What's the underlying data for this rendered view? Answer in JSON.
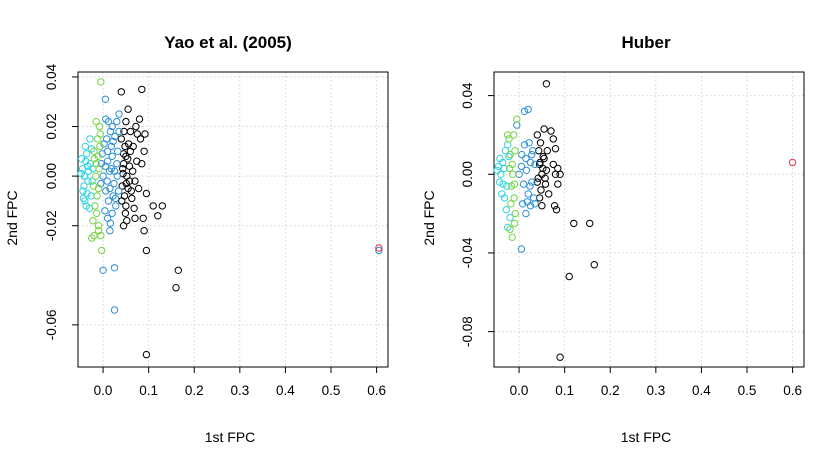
{
  "chart_data": [
    {
      "type": "scatter",
      "title": "Yao et al. (2005)",
      "xlabel": "1st FPC",
      "ylabel": "2nd FPC",
      "xlim": [
        -0.055,
        0.625
      ],
      "ylim": [
        -0.077,
        0.042
      ],
      "xticks": [
        0.0,
        0.1,
        0.2,
        0.3,
        0.4,
        0.5,
        0.6
      ],
      "xtick_labels": [
        "0.0",
        "0.1",
        "0.2",
        "0.3",
        "0.4",
        "0.5",
        "0.6"
      ],
      "yticks": [
        0.04,
        0.02,
        0.0,
        -0.02,
        -0.06
      ],
      "ytick_labels": [
        "0.04",
        "0.02",
        "0.00",
        "-0.02",
        "-0.06"
      ],
      "grid": true,
      "marker": "open-circle",
      "series": [
        {
          "color": "#000000",
          "points": [
            [
              0.05,
              0.008
            ],
            [
              0.045,
              0.005
            ],
            [
              0.048,
              0.012
            ],
            [
              0.052,
              0.0
            ],
            [
              0.055,
              -0.005
            ],
            [
              0.047,
              -0.008
            ],
            [
              0.043,
              0.003
            ],
            [
              0.06,
              0.01
            ],
            [
              0.058,
              -0.002
            ],
            [
              0.05,
              -0.012
            ],
            [
              0.04,
              0.015
            ],
            [
              0.042,
              -0.004
            ],
            [
              0.065,
              0.002
            ],
            [
              0.063,
              -0.009
            ],
            [
              0.046,
              0.018
            ],
            [
              0.054,
              0.007
            ],
            [
              0.049,
              -0.015
            ],
            [
              0.044,
              0.001
            ],
            [
              0.056,
              0.013
            ],
            [
              0.041,
              -0.01
            ],
            [
              0.075,
              0.017
            ],
            [
              0.08,
              0.023
            ],
            [
              0.078,
              -0.005
            ],
            [
              0.085,
              0.005
            ],
            [
              0.09,
              0.01
            ],
            [
              0.07,
              -0.017
            ],
            [
              0.072,
              0.02
            ],
            [
              0.068,
              -0.013
            ],
            [
              0.095,
              -0.007
            ],
            [
              0.088,
              -0.017
            ],
            [
              0.082,
              0.015
            ],
            [
              0.04,
              0.034
            ],
            [
              0.055,
              0.027
            ],
            [
              0.06,
              0.018
            ],
            [
              0.05,
              0.022
            ],
            [
              0.045,
              -0.02
            ],
            [
              0.052,
              -0.018
            ],
            [
              0.085,
              0.035
            ],
            [
              0.092,
              0.017
            ],
            [
              0.11,
              -0.012
            ],
            [
              0.12,
              -0.016
            ],
            [
              0.09,
              -0.022
            ],
            [
              0.095,
              -0.03
            ],
            [
              0.13,
              -0.012
            ],
            [
              0.165,
              -0.038
            ],
            [
              0.16,
              -0.045
            ],
            [
              0.095,
              -0.072
            ],
            [
              0.058,
              0.004
            ],
            [
              0.062,
              -0.006
            ],
            [
              0.045,
              0.009
            ],
            [
              0.066,
              0.012
            ],
            [
              0.07,
              -0.002
            ],
            [
              0.051,
              -0.003
            ],
            [
              0.074,
              0.006
            ]
          ]
        },
        {
          "color": "#2c8fd6",
          "points": [
            [
              0.0,
              0.0
            ],
            [
              0.005,
              0.004
            ],
            [
              -0.005,
              -0.003
            ],
            [
              0.01,
              0.006
            ],
            [
              0.015,
              -0.005
            ],
            [
              0.02,
              0.008
            ],
            [
              0.025,
              0.002
            ],
            [
              0.012,
              -0.01
            ],
            [
              -0.002,
              0.009
            ],
            [
              0.018,
              0.012
            ],
            [
              0.022,
              -0.008
            ],
            [
              0.03,
              0.005
            ],
            [
              0.028,
              -0.012
            ],
            [
              0.008,
              0.015
            ],
            [
              0.004,
              -0.014
            ],
            [
              0.016,
              0.018
            ],
            [
              0.026,
              0.016
            ],
            [
              0.032,
              0.01
            ],
            [
              0.034,
              -0.006
            ],
            [
              0.01,
              -0.017
            ],
            [
              0.02,
              -0.015
            ],
            [
              -0.004,
              0.005
            ],
            [
              0.006,
              -0.006
            ],
            [
              0.014,
              0.002
            ],
            [
              0.024,
              -0.003
            ],
            [
              0.012,
              0.022
            ],
            [
              0.02,
              0.02
            ],
            [
              0.006,
              0.023
            ],
            [
              0.03,
              0.022
            ],
            [
              0.035,
              0.018
            ],
            [
              0.015,
              -0.022
            ],
            [
              0.005,
              0.031
            ],
            [
              0.0,
              -0.038
            ],
            [
              0.025,
              -0.037
            ],
            [
              0.025,
              -0.054
            ],
            [
              0.035,
              0.025
            ],
            [
              0.605,
              -0.03
            ],
            [
              0.018,
              0.003
            ],
            [
              0.01,
              0.01
            ],
            [
              0.022,
              0.014
            ],
            [
              0.027,
              -0.009
            ],
            [
              0.002,
              0.013
            ],
            [
              0.016,
              -0.019
            ],
            [
              0.031,
              0.0
            ],
            [
              0.009,
              -0.002
            ]
          ]
        },
        {
          "color": "#2fd4e3",
          "points": [
            [
              -0.04,
              0.0
            ],
            [
              -0.045,
              0.003
            ],
            [
              -0.042,
              -0.004
            ],
            [
              -0.038,
              0.006
            ],
            [
              -0.035,
              -0.007
            ],
            [
              -0.048,
              0.001
            ],
            [
              -0.04,
              -0.01
            ],
            [
              -0.036,
              0.009
            ],
            [
              -0.032,
              0.002
            ],
            [
              -0.044,
              -0.006
            ],
            [
              -0.03,
              -0.013
            ],
            [
              -0.025,
              0.011
            ],
            [
              -0.028,
              0.005
            ],
            [
              -0.033,
              -0.002
            ],
            [
              -0.047,
              0.007
            ],
            [
              -0.039,
              0.012
            ],
            [
              -0.026,
              -0.008
            ],
            [
              -0.022,
              0.003
            ],
            [
              -0.029,
              0.015
            ],
            [
              -0.041,
              0.0
            ],
            [
              -0.037,
              -0.012
            ],
            [
              -0.024,
              -0.002
            ],
            [
              -0.034,
              0.004
            ],
            [
              -0.043,
              -0.009
            ]
          ]
        },
        {
          "color": "#76d443",
          "points": [
            [
              -0.015,
              0.005
            ],
            [
              -0.01,
              -0.005
            ],
            [
              -0.02,
              0.01
            ],
            [
              -0.012,
              0.015
            ],
            [
              -0.018,
              -0.012
            ],
            [
              -0.008,
              0.02
            ],
            [
              -0.022,
              -0.018
            ],
            [
              -0.015,
              0.022
            ],
            [
              -0.01,
              -0.02
            ],
            [
              -0.005,
              -0.024
            ],
            [
              -0.025,
              -0.025
            ],
            [
              -0.02,
              -0.024
            ],
            [
              -0.01,
              -0.022
            ],
            [
              -0.005,
              0.038
            ],
            [
              -0.003,
              -0.03
            ],
            [
              -0.016,
              0.0
            ],
            [
              -0.019,
              0.007
            ],
            [
              -0.009,
              0.003
            ],
            [
              -0.013,
              -0.008
            ],
            [
              -0.007,
              0.012
            ],
            [
              -0.021,
              -0.004
            ],
            [
              -0.011,
              0.008
            ],
            [
              -0.014,
              -0.015
            ],
            [
              -0.006,
              0.017
            ]
          ]
        },
        {
          "color": "#e0324e",
          "points": [
            [
              0.605,
              -0.029
            ]
          ]
        }
      ]
    },
    {
      "type": "scatter",
      "title": "Huber",
      "xlabel": "1st FPC",
      "ylabel": "2nd FPC",
      "xlim": [
        -0.055,
        0.625
      ],
      "ylim": [
        -0.098,
        0.052
      ],
      "xticks": [
        0.0,
        0.1,
        0.2,
        0.3,
        0.4,
        0.5,
        0.6
      ],
      "xtick_labels": [
        "0.0",
        "0.1",
        "0.2",
        "0.3",
        "0.4",
        "0.5",
        "0.6"
      ],
      "yticks": [
        0.04,
        0.0,
        -0.04,
        -0.08
      ],
      "ytick_labels": [
        "0.04",
        "0.00",
        "-0.04",
        "-0.08"
      ],
      "grid": true,
      "marker": "open-circle",
      "series": [
        {
          "color": "#000000",
          "points": [
            [
              0.045,
              0.005
            ],
            [
              0.05,
              0.0
            ],
            [
              0.04,
              -0.004
            ],
            [
              0.055,
              0.008
            ],
            [
              0.048,
              -0.008
            ],
            [
              0.052,
              0.003
            ],
            [
              0.043,
              0.012
            ],
            [
              0.058,
              -0.005
            ],
            [
              0.047,
              0.016
            ],
            [
              0.04,
              0.02
            ],
            [
              0.055,
              0.023
            ],
            [
              0.045,
              -0.012
            ],
            [
              0.05,
              -0.016
            ],
            [
              0.06,
              0.002
            ],
            [
              0.062,
              0.012
            ],
            [
              0.065,
              -0.01
            ],
            [
              0.07,
              0.022
            ],
            [
              0.075,
              0.018
            ],
            [
              0.08,
              0.0
            ],
            [
              0.085,
              -0.005
            ],
            [
              0.078,
              -0.016
            ],
            [
              0.082,
              -0.018
            ],
            [
              0.08,
              0.013
            ],
            [
              0.085,
              0.003
            ],
            [
              0.09,
              0.0
            ],
            [
              0.075,
              0.005
            ],
            [
              0.06,
              0.046
            ],
            [
              0.12,
              -0.025
            ],
            [
              0.155,
              -0.025
            ],
            [
              0.11,
              -0.052
            ],
            [
              0.165,
              -0.046
            ],
            [
              0.09,
              -0.093
            ],
            [
              0.042,
              -0.002
            ],
            [
              0.053,
              0.009
            ],
            [
              0.057,
              -0.002
            ],
            [
              0.046,
              0.006
            ]
          ]
        },
        {
          "color": "#2c8fd6",
          "points": [
            [
              0.0,
              0.0
            ],
            [
              0.005,
              0.004
            ],
            [
              0.01,
              -0.005
            ],
            [
              0.015,
              0.008
            ],
            [
              0.02,
              -0.01
            ],
            [
              0.025,
              0.006
            ],
            [
              0.03,
              0.012
            ],
            [
              0.028,
              -0.004
            ],
            [
              0.012,
              0.015
            ],
            [
              0.018,
              -0.014
            ],
            [
              0.008,
              -0.015
            ],
            [
              0.022,
              0.016
            ],
            [
              0.032,
              -0.012
            ],
            [
              0.035,
              0.005
            ],
            [
              0.012,
              0.032
            ],
            [
              0.02,
              0.033
            ],
            [
              -0.005,
              0.025
            ],
            [
              0.005,
              -0.038
            ],
            [
              0.015,
              -0.02
            ],
            [
              0.025,
              -0.016
            ],
            [
              0.035,
              -0.015
            ],
            [
              0.006,
              0.01
            ],
            [
              0.016,
              0.002
            ],
            [
              0.024,
              -0.006
            ],
            [
              0.028,
              0.01
            ]
          ]
        },
        {
          "color": "#2fd4e3",
          "points": [
            [
              -0.04,
              0.0
            ],
            [
              -0.045,
              0.004
            ],
            [
              -0.035,
              -0.005
            ],
            [
              -0.042,
              0.008
            ],
            [
              -0.038,
              -0.01
            ],
            [
              -0.048,
              0.002
            ],
            [
              -0.03,
              0.012
            ],
            [
              -0.032,
              -0.012
            ],
            [
              -0.025,
              0.015
            ],
            [
              -0.028,
              -0.018
            ],
            [
              -0.02,
              -0.022
            ],
            [
              -0.025,
              -0.027
            ],
            [
              -0.033,
              0.003
            ],
            [
              -0.043,
              -0.004
            ],
            [
              -0.036,
              0.006
            ],
            [
              -0.027,
              -0.006
            ],
            [
              -0.022,
              0.009
            ]
          ]
        },
        {
          "color": "#76d443",
          "points": [
            [
              -0.015,
              0.005
            ],
            [
              -0.01,
              -0.005
            ],
            [
              -0.02,
              0.01
            ],
            [
              -0.012,
              0.02
            ],
            [
              -0.018,
              -0.015
            ],
            [
              -0.008,
              -0.02
            ],
            [
              -0.022,
              0.018
            ],
            [
              -0.005,
              0.028
            ],
            [
              -0.02,
              -0.028
            ],
            [
              -0.015,
              -0.032
            ],
            [
              -0.01,
              -0.025
            ],
            [
              -0.025,
              0.02
            ],
            [
              -0.014,
              0.0
            ],
            [
              -0.017,
              -0.006
            ],
            [
              -0.009,
              0.012
            ],
            [
              -0.011,
              -0.012
            ],
            [
              -0.021,
              0.003
            ]
          ]
        },
        {
          "color": "#e0324e",
          "points": [
            [
              0.6,
              0.006
            ]
          ]
        }
      ]
    }
  ]
}
